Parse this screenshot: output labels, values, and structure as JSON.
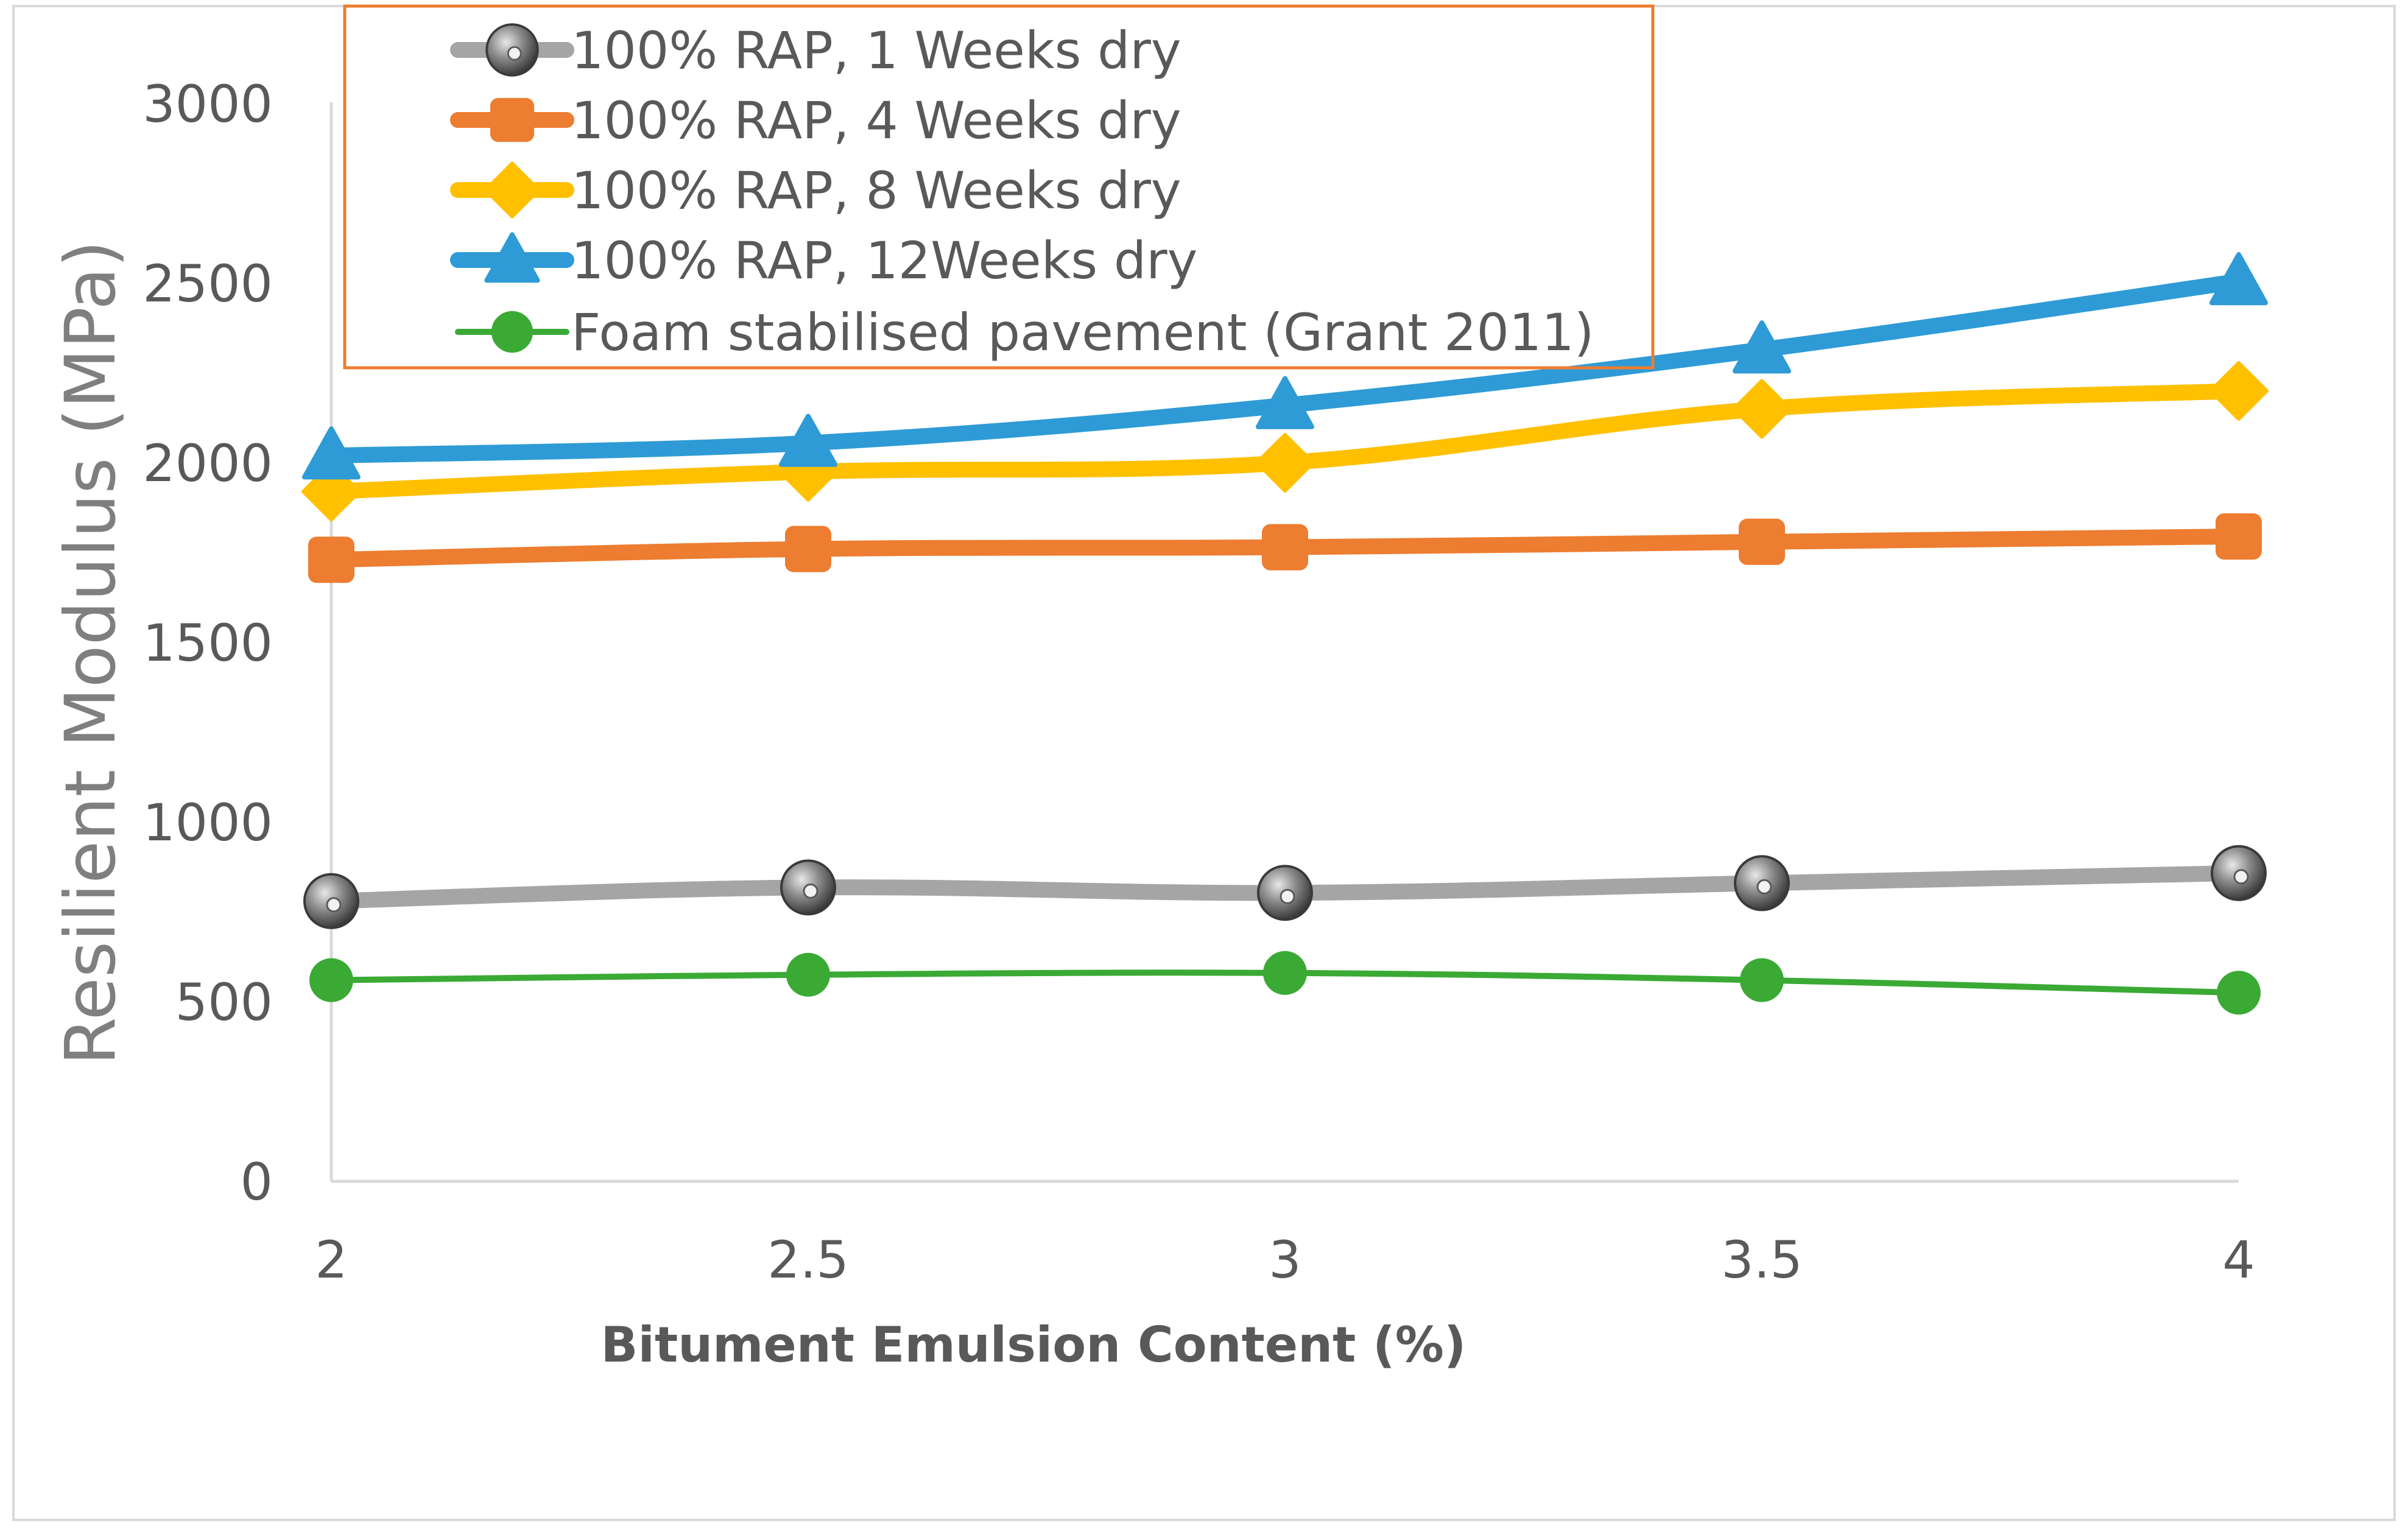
{
  "chart_data": {
    "type": "line",
    "title": "",
    "xlabel": "Bitument Emulsion Content (%)",
    "ylabel": "Resilient Modulus (MPa)",
    "x": [
      2,
      2.5,
      3,
      3.5,
      4
    ],
    "x_tick_labels": [
      "2",
      "2.5",
      "3",
      "3.5",
      "4"
    ],
    "xlim": [
      2,
      4
    ],
    "ylim": [
      0,
      3000
    ],
    "y_ticks": [
      0,
      500,
      1000,
      1500,
      2000,
      2500,
      3000
    ],
    "y_tick_labels": [
      "0",
      "500",
      "1000",
      "1500",
      "2000",
      "2500",
      "3000"
    ],
    "grid": false,
    "legend_position": "top-left",
    "series": [
      {
        "name": "100% RAP, 1 Weeks dry",
        "color": "#a5a5a5",
        "marker": "sphere",
        "values": [
          780,
          818,
          803,
          830,
          858
        ]
      },
      {
        "name": "100% RAP, 4 Weeks dry",
        "color": "#ed7d31",
        "marker": "square",
        "values": [
          1730,
          1760,
          1765,
          1780,
          1795
        ]
      },
      {
        "name": "100% RAP, 8 Weeks dry",
        "color": "#ffc000",
        "marker": "diamond",
        "values": [
          1920,
          1975,
          2000,
          2150,
          2200
        ]
      },
      {
        "name": "100% RAP, 12Weeks dry",
        "color": "#2e9bd6",
        "marker": "triangle",
        "values": [
          2020,
          2055,
          2160,
          2315,
          2505
        ]
      },
      {
        "name": "Foam stabilised pavement (Grant 2011)",
        "color": "#3aaa35",
        "marker": "circle",
        "values": [
          560,
          575,
          580,
          560,
          525
        ]
      }
    ]
  }
}
